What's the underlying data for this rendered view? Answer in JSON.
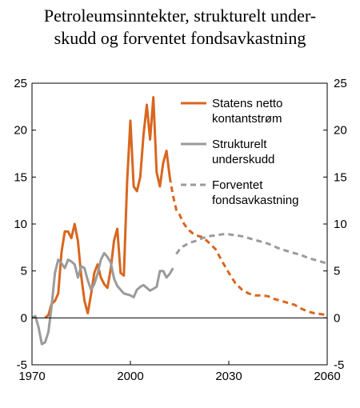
{
  "chart_data": {
    "type": "line",
    "title_lines": [
      "Petroleumsinntekter, strukturelt under-",
      "skudd og forventet fondsavkastning"
    ],
    "xlim": [
      1970,
      2060
    ],
    "ylim": [
      -5,
      25
    ],
    "x_ticks": [
      1970,
      2000,
      2030,
      2060
    ],
    "y_ticks": [
      -5,
      0,
      5,
      10,
      15,
      20,
      25
    ],
    "grid": false,
    "legend_position": "top-right",
    "colors": {
      "orange": "#d9661f",
      "gray": "#9b9b9b"
    },
    "series": [
      {
        "name": "Statens netto kontantstrøm",
        "legend_lines": [
          "Statens netto",
          "kontantstrøm"
        ],
        "color": "#d9661f",
        "style": "solid",
        "points": [
          [
            1974,
            0
          ],
          [
            1975,
            0.3
          ],
          [
            1976,
            1.5
          ],
          [
            1977,
            1.8
          ],
          [
            1978,
            2.6
          ],
          [
            1979,
            7.0
          ],
          [
            1980,
            9.2
          ],
          [
            1981,
            9.2
          ],
          [
            1982,
            8.5
          ],
          [
            1983,
            10.0
          ],
          [
            1984,
            8.2
          ],
          [
            1985,
            4.5
          ],
          [
            1986,
            1.8
          ],
          [
            1987,
            0.5
          ],
          [
            1988,
            2.5
          ],
          [
            1989,
            4.8
          ],
          [
            1990,
            5.7
          ],
          [
            1991,
            4.3
          ],
          [
            1992,
            3.6
          ],
          [
            1993,
            3.2
          ],
          [
            1994,
            5.2
          ],
          [
            1995,
            8.2
          ],
          [
            1996,
            9.5
          ],
          [
            1997,
            4.8
          ],
          [
            1998,
            4.5
          ],
          [
            1999,
            14.5
          ],
          [
            2000,
            21.0
          ],
          [
            2001,
            14.0
          ],
          [
            2002,
            13.5
          ],
          [
            2003,
            15.0
          ],
          [
            2004,
            19.5
          ],
          [
            2005,
            22.7
          ],
          [
            2006,
            19.0
          ],
          [
            2007,
            23.5
          ],
          [
            2008,
            15.5
          ],
          [
            2009,
            14.0
          ],
          [
            2010,
            16.5
          ],
          [
            2011,
            17.8
          ],
          [
            2012,
            15.0
          ]
        ]
      },
      {
        "name": "Statens netto kontantstrøm (forventet)",
        "color": "#d9661f",
        "style": "dashed",
        "points": [
          [
            2012,
            15.0
          ],
          [
            2013,
            13.0
          ],
          [
            2014,
            11.5
          ],
          [
            2015,
            11.0
          ],
          [
            2016,
            10.2
          ],
          [
            2017,
            9.7
          ],
          [
            2018,
            9.3
          ],
          [
            2019,
            9.0
          ],
          [
            2020,
            8.8
          ],
          [
            2022,
            8.6
          ],
          [
            2024,
            8.0
          ],
          [
            2026,
            7.3
          ],
          [
            2028,
            6.0
          ],
          [
            2030,
            4.8
          ],
          [
            2032,
            3.7
          ],
          [
            2034,
            3.0
          ],
          [
            2036,
            2.6
          ],
          [
            2038,
            2.4
          ],
          [
            2040,
            2.4
          ],
          [
            2042,
            2.3
          ],
          [
            2044,
            2.0
          ],
          [
            2046,
            1.8
          ],
          [
            2048,
            1.6
          ],
          [
            2050,
            1.4
          ],
          [
            2052,
            1.0
          ],
          [
            2054,
            0.7
          ],
          [
            2056,
            0.5
          ],
          [
            2058,
            0.4
          ],
          [
            2060,
            0.3
          ]
        ]
      },
      {
        "name": "Strukturelt underskudd",
        "legend_lines": [
          "Strukturelt",
          "underskudd"
        ],
        "color": "#9b9b9b",
        "style": "solid",
        "points": [
          [
            1970,
            0
          ],
          [
            1971,
            0.2
          ],
          [
            1972,
            -1.0
          ],
          [
            1973,
            -2.8
          ],
          [
            1974,
            -2.6
          ],
          [
            1975,
            -1.5
          ],
          [
            1976,
            1.3
          ],
          [
            1977,
            4.8
          ],
          [
            1978,
            6.2
          ],
          [
            1979,
            5.8
          ],
          [
            1980,
            5.3
          ],
          [
            1981,
            6.2
          ],
          [
            1982,
            6.0
          ],
          [
            1983,
            5.7
          ],
          [
            1984,
            4.3
          ],
          [
            1985,
            5.5
          ],
          [
            1986,
            5.3
          ],
          [
            1987,
            4.0
          ],
          [
            1988,
            3.0
          ],
          [
            1989,
            3.6
          ],
          [
            1990,
            4.7
          ],
          [
            1991,
            6.2
          ],
          [
            1992,
            6.9
          ],
          [
            1993,
            6.5
          ],
          [
            1994,
            5.9
          ],
          [
            1995,
            4.2
          ],
          [
            1996,
            3.4
          ],
          [
            1997,
            3.0
          ],
          [
            1998,
            2.6
          ],
          [
            1999,
            2.5
          ],
          [
            2000,
            2.4
          ],
          [
            2001,
            2.2
          ],
          [
            2002,
            3.0
          ],
          [
            2003,
            3.3
          ],
          [
            2004,
            3.5
          ],
          [
            2005,
            3.2
          ],
          [
            2006,
            2.9
          ],
          [
            2007,
            3.1
          ],
          [
            2008,
            3.3
          ],
          [
            2009,
            5.0
          ],
          [
            2010,
            5.0
          ],
          [
            2011,
            4.3
          ],
          [
            2012,
            4.7
          ],
          [
            2013,
            5.3
          ]
        ]
      },
      {
        "name": "Forventet fondsavkastning",
        "legend_lines": [
          "Forventet",
          "fondsavkastning"
        ],
        "color": "#9b9b9b",
        "style": "dashed",
        "points": [
          [
            2014,
            6.8
          ],
          [
            2015,
            7.3
          ],
          [
            2016,
            7.6
          ],
          [
            2018,
            8.0
          ],
          [
            2020,
            8.2
          ],
          [
            2022,
            8.5
          ],
          [
            2024,
            8.7
          ],
          [
            2026,
            8.8
          ],
          [
            2028,
            8.9
          ],
          [
            2030,
            8.9
          ],
          [
            2032,
            8.8
          ],
          [
            2034,
            8.7
          ],
          [
            2036,
            8.5
          ],
          [
            2038,
            8.3
          ],
          [
            2040,
            8.1
          ],
          [
            2042,
            7.9
          ],
          [
            2044,
            7.6
          ],
          [
            2046,
            7.3
          ],
          [
            2048,
            7.1
          ],
          [
            2050,
            6.9
          ],
          [
            2052,
            6.7
          ],
          [
            2054,
            6.4
          ],
          [
            2056,
            6.2
          ],
          [
            2058,
            6.0
          ],
          [
            2060,
            5.8
          ]
        ]
      }
    ]
  }
}
